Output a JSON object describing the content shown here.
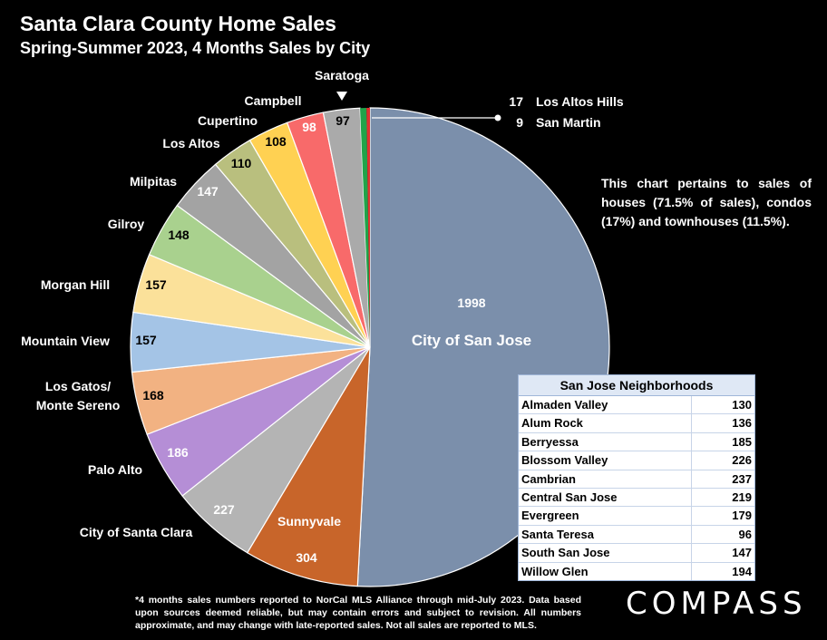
{
  "title": "Santa Clara County Home Sales",
  "subtitle": "Spring-Summer 2023, 4 Months Sales by City",
  "note": "This chart pertains to sales of houses (71.5% of sales), condos (17%) and townhouses (11.5%).",
  "table": {
    "title": "San Jose Neighborhoods",
    "rows": [
      {
        "name": "Almaden Valley",
        "value": "130"
      },
      {
        "name": "Alum Rock",
        "value": "136"
      },
      {
        "name": "Berryessa",
        "value": "185"
      },
      {
        "name": "Blossom Valley",
        "value": "226"
      },
      {
        "name": "Cambrian",
        "value": "237"
      },
      {
        "name": "Central San Jose",
        "value": "219"
      },
      {
        "name": "Evergreen",
        "value": "179"
      },
      {
        "name": "Santa Teresa",
        "value": "96"
      },
      {
        "name": "South San Jose",
        "value": "147"
      },
      {
        "name": "Willow Glen",
        "value": "194"
      }
    ]
  },
  "footnote": "*4 months sales numbers reported to NorCal MLS Alliance through mid-July 2023. Data based upon sources deemed reliable, but may contain errors and subject to revision. All numbers approximate, and may change with late-reported sales. Not all sales are reported to MLS.",
  "logo": "COMPASS",
  "chart_data": {
    "type": "pie",
    "title": "Santa Clara County Home Sales",
    "subtitle": "Spring-Summer 2023, 4 Months Sales by City",
    "start": "12 o'clock, clockwise",
    "slices": [
      {
        "label": "City of San Jose",
        "value": 1998,
        "color": "#7b8fab"
      },
      {
        "label": "Sunnyvale",
        "value": 304,
        "color": "#c8652a"
      },
      {
        "label": "City of Santa Clara",
        "value": 227,
        "color": "#b4b4b4"
      },
      {
        "label": "Palo Alto",
        "value": 186,
        "color": "#b58ed6"
      },
      {
        "label": "Los Gatos/ Monte Sereno",
        "value": 168,
        "color": "#f2b282"
      },
      {
        "label": "Mountain View",
        "value": 157,
        "color": "#a4c4e6"
      },
      {
        "label": "Morgan Hill",
        "value": 157,
        "color": "#fbe19a"
      },
      {
        "label": "Gilroy",
        "value": 148,
        "color": "#a9d18e"
      },
      {
        "label": "Milpitas",
        "value": 147,
        "color": "#a3a3a3"
      },
      {
        "label": "Los Altos",
        "value": 110,
        "color": "#b9bf7e"
      },
      {
        "label": "Cupertino",
        "value": 108,
        "color": "#ffd152"
      },
      {
        "label": "Campbell",
        "value": 98,
        "color": "#f86a6a"
      },
      {
        "label": "Saratoga",
        "value": 97,
        "color": "#aaaaaa"
      },
      {
        "label": "Los Altos Hills",
        "value": 17,
        "color": "#21a34a"
      },
      {
        "label": "San Martin",
        "value": 9,
        "color": "#e03030"
      }
    ]
  }
}
